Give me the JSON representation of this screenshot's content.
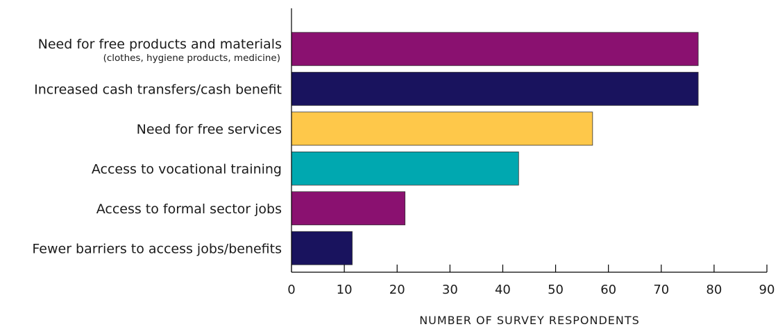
{
  "chart_data": {
    "type": "bar",
    "orientation": "horizontal",
    "categories": [
      "Need for free products and materials",
      "Increased cash transfers/cash benefit",
      "Need for free services",
      "Access to vocational training",
      "Access to formal sector jobs",
      "Fewer barriers to access jobs/benefits"
    ],
    "category_sublabels": [
      "(clothes, hygiene products, medicine)",
      "",
      "",
      "",
      "",
      ""
    ],
    "values": [
      77,
      77,
      57,
      43,
      21.5,
      11.5
    ],
    "bar_colors": [
      "#8a1170",
      "#19135e",
      "#fec84a",
      "#00a8b0",
      "#8a1170",
      "#19135e"
    ],
    "xlabel": "NUMBER OF SURVEY RESPONDENTS",
    "xlim": [
      0,
      90
    ],
    "xticks": [
      "0",
      "10",
      "20",
      "30",
      "40",
      "50",
      "60",
      "70",
      "80",
      "90"
    ],
    "grid": false
  }
}
